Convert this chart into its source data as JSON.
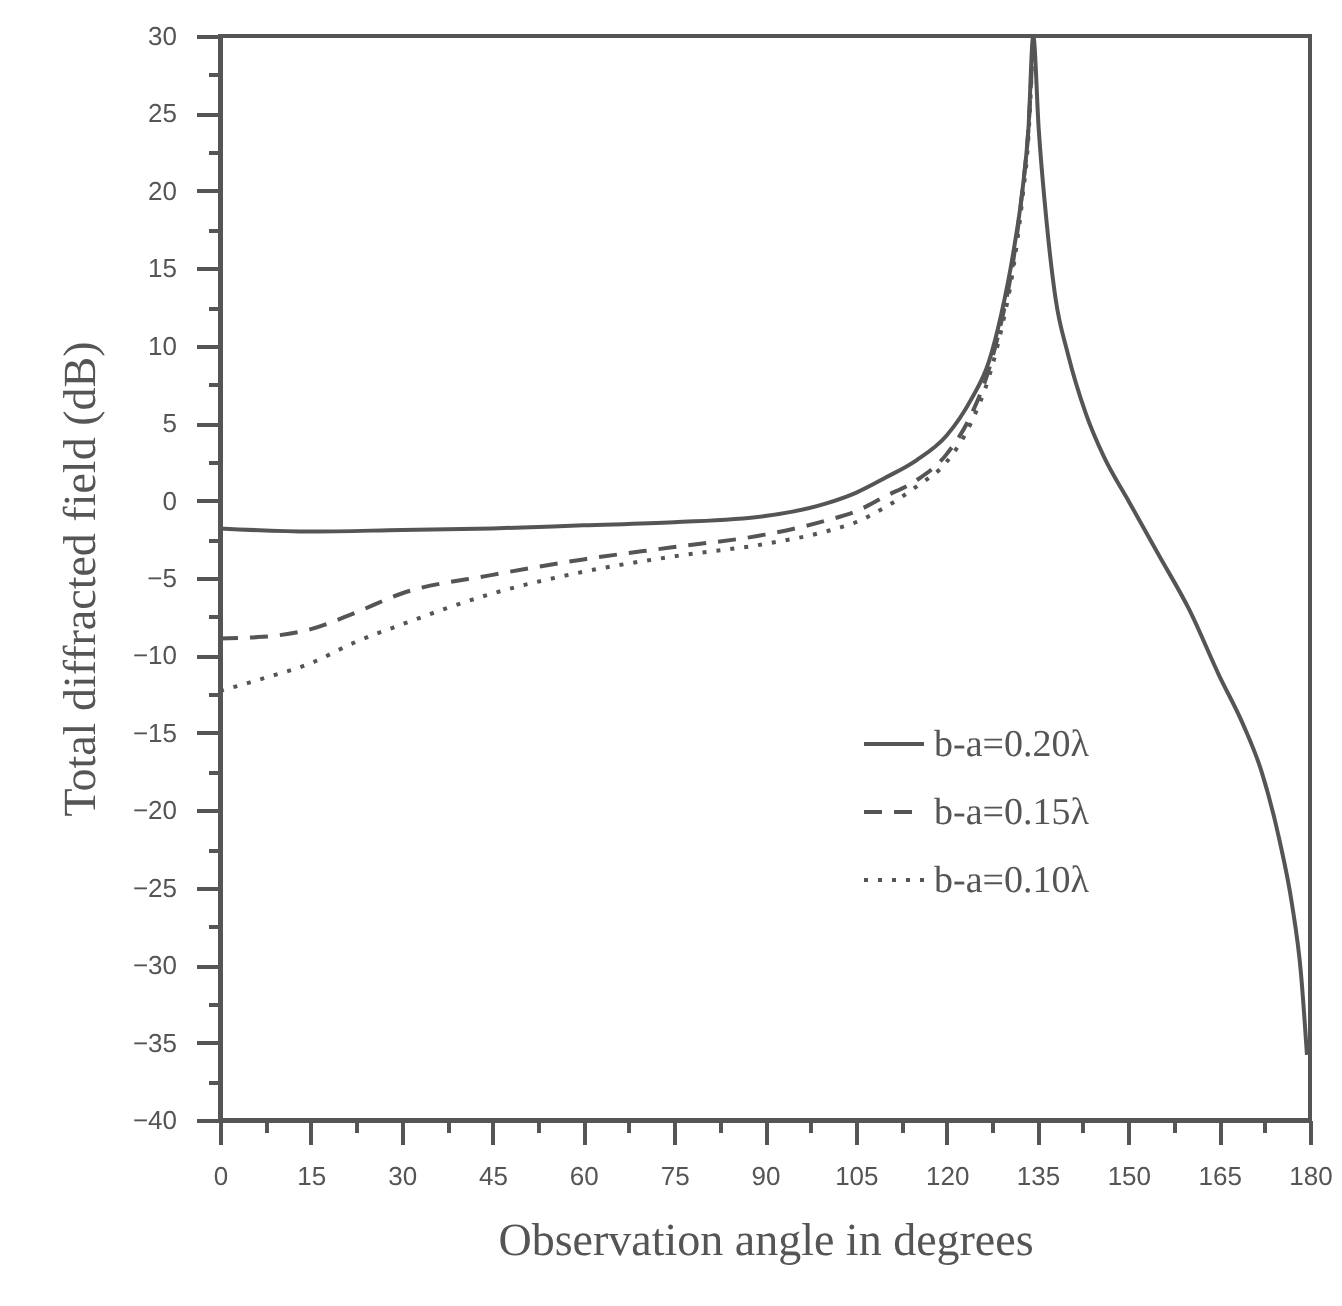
{
  "chart_data": {
    "type": "line",
    "xlabel": "Observation angle in degrees",
    "ylabel": "Total diffracted field (dB)",
    "xlim": [
      0,
      180
    ],
    "ylim": [
      -40,
      30
    ],
    "xticks": [
      0,
      {
        "value": 7.5,
        "label": null
      },
      15,
      {
        "value": 22.5,
        "label": null
      },
      30,
      {
        "value": 37.5,
        "label": null
      },
      45,
      {
        "value": 52.5,
        "label": null
      },
      60,
      {
        "value": 67.5,
        "label": null
      },
      75,
      {
        "value": 82.5,
        "label": null
      },
      90,
      {
        "value": 97.5,
        "label": null
      },
      105,
      {
        "value": 112.5,
        "label": null
      },
      120,
      {
        "value": 127.5,
        "label": null
      },
      135,
      {
        "value": 142.5,
        "label": null
      },
      150,
      {
        "value": 157.5,
        "label": null
      },
      165,
      {
        "value": 172.5,
        "label": null
      },
      180
    ],
    "yticks": [
      -40,
      {
        "value": -37.5,
        "label": null
      },
      -35,
      {
        "value": -32.5,
        "label": null
      },
      -30,
      {
        "value": -27.5,
        "label": null
      },
      -25,
      {
        "value": -22.5,
        "label": null
      },
      -20,
      {
        "value": -17.5,
        "label": null
      },
      -15,
      {
        "value": -12.5,
        "label": null
      },
      -10,
      {
        "value": -7.5,
        "label": null
      },
      -5,
      {
        "value": -2.5,
        "label": null
      },
      0,
      {
        "value": 2.5,
        "label": null
      },
      5,
      {
        "value": 7.5,
        "label": null
      },
      10,
      {
        "value": 12.5,
        "label": null
      },
      15,
      {
        "value": 17.5,
        "label": null
      },
      20,
      {
        "value": 22.5,
        "label": null
      },
      25,
      {
        "value": 27.5,
        "label": null
      },
      30
    ],
    "grid": false,
    "legend": "bottom right",
    "marker": "none",
    "series": [
      {
        "name": "b-a=0.20λ",
        "color": "#555555",
        "line_style": "solid",
        "x": [
          0,
          15,
          30,
          45,
          60,
          75,
          90,
          100,
          105,
          110,
          115,
          120,
          124,
          127,
          129,
          131,
          132.5,
          133.5,
          134.3,
          135.2,
          136.5,
          138,
          140,
          143,
          146,
          150,
          155,
          160,
          165,
          169,
          172,
          175,
          177,
          178.5,
          179.5
        ],
        "values": [
          -1.8,
          -2.0,
          -1.9,
          -1.8,
          -1.6,
          -1.4,
          -1.0,
          -0.2,
          0.5,
          1.5,
          2.6,
          4.2,
          6.5,
          9.0,
          12,
          16,
          20,
          24,
          30,
          24,
          18,
          13,
          9.5,
          5.6,
          2.8,
          0,
          -3.5,
          -7,
          -11.3,
          -14.5,
          -17.5,
          -22,
          -26,
          -30.5,
          -35.8
        ]
      },
      {
        "name": "b-a=0.15λ",
        "color": "#555555",
        "line_style": "dashed",
        "x": [
          0,
          7,
          15,
          22,
          30,
          45,
          60,
          75,
          90,
          100,
          105,
          110,
          115,
          120,
          124,
          127,
          129,
          131,
          132.5,
          133.5,
          134.3
        ],
        "values": [
          -8.9,
          -8.8,
          -8.3,
          -7.3,
          -6.0,
          -4.8,
          -3.8,
          -3.0,
          -2.2,
          -1.3,
          -0.7,
          0.3,
          1.3,
          3.0,
          5.5,
          8.5,
          11.5,
          15.5,
          20,
          24,
          30
        ]
      },
      {
        "name": "b-a=0.10λ",
        "color": "#555555",
        "line_style": "dotted",
        "x": [
          0,
          7,
          15,
          22,
          30,
          45,
          60,
          75,
          90,
          100,
          105,
          110,
          115,
          120,
          124,
          127,
          129,
          131,
          132.5,
          133.5,
          134.3
        ],
        "values": [
          -12.3,
          -11.5,
          -10.5,
          -9.2,
          -8.0,
          -6.0,
          -4.6,
          -3.6,
          -2.8,
          -2.0,
          -1.4,
          -0.4,
          0.9,
          2.5,
          5.0,
          8.0,
          11,
          15,
          19.5,
          23.5,
          30
        ]
      }
    ]
  }
}
